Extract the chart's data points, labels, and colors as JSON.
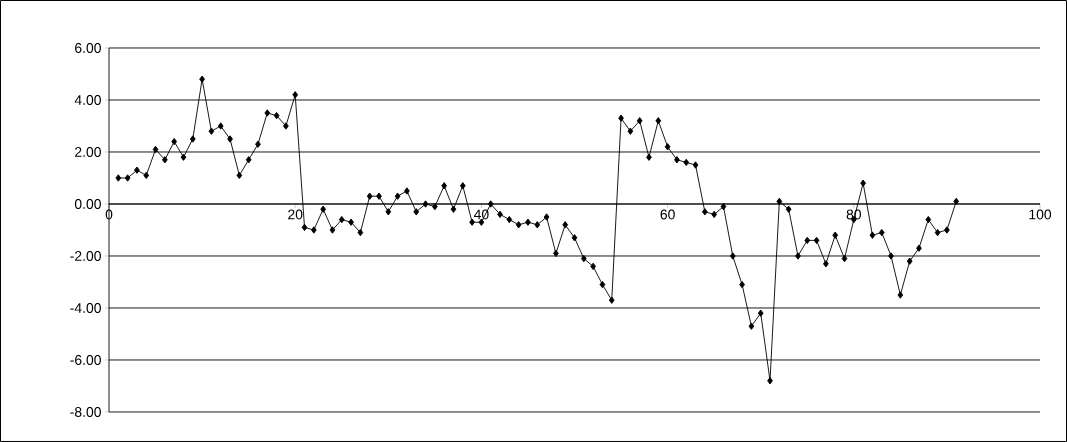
{
  "chart_data": {
    "type": "line",
    "x": [
      1,
      2,
      3,
      4,
      5,
      6,
      7,
      8,
      9,
      10,
      11,
      12,
      13,
      14,
      15,
      16,
      17,
      18,
      19,
      20,
      21,
      22,
      23,
      24,
      25,
      26,
      27,
      28,
      29,
      30,
      31,
      32,
      33,
      34,
      35,
      36,
      37,
      38,
      39,
      40,
      41,
      42,
      43,
      44,
      45,
      46,
      47,
      48,
      49,
      50,
      51,
      52,
      53,
      54,
      55,
      56,
      57,
      58,
      59,
      60,
      61,
      62,
      63,
      64,
      65,
      66,
      67,
      68,
      69,
      70,
      71,
      72,
      73,
      74,
      75,
      76,
      77,
      78,
      79,
      80,
      81,
      82,
      83,
      84,
      85,
      86,
      87,
      88,
      89,
      90,
      91
    ],
    "values": [
      1.0,
      1.0,
      1.3,
      1.1,
      2.1,
      1.7,
      2.4,
      1.8,
      2.5,
      4.8,
      2.8,
      3.0,
      2.5,
      1.1,
      1.7,
      2.3,
      3.5,
      3.4,
      3.0,
      4.2,
      -0.9,
      -1.0,
      -0.2,
      -1.0,
      -0.6,
      -0.7,
      -1.1,
      0.3,
      0.3,
      -0.3,
      0.3,
      0.5,
      -0.3,
      0.0,
      -0.1,
      0.7,
      -0.2,
      0.7,
      -0.7,
      -0.7,
      0.0,
      -0.4,
      -0.6,
      -0.8,
      -0.7,
      -0.8,
      -0.5,
      -1.9,
      -0.8,
      -1.3,
      -2.1,
      -2.4,
      -3.1,
      -3.7,
      3.3,
      2.8,
      3.2,
      1.8,
      3.2,
      2.2,
      1.7,
      1.6,
      1.5,
      -0.3,
      -0.4,
      -0.1,
      -2.0,
      -3.1,
      -4.7,
      -4.2,
      -6.8,
      0.1,
      -0.2,
      -2.0,
      -1.4,
      -1.4,
      -2.3,
      -1.2,
      -2.1,
      -0.6,
      0.8,
      -1.2,
      -1.1,
      -2.0,
      -3.5,
      -2.2,
      -1.7,
      -0.6,
      -1.1,
      -1.0,
      0.1
    ],
    "color": "#000000",
    "marker": "diamond",
    "line_style": "solid",
    "xlim": [
      0,
      100
    ],
    "xticks": [
      0,
      20,
      40,
      60,
      80,
      100
    ],
    "ylim": [
      -8,
      6
    ],
    "yticks": [
      {
        "value": -8,
        "label": "-8.00"
      },
      {
        "value": -6,
        "label": "-6.00"
      },
      {
        "value": -4,
        "label": "-4.00"
      },
      {
        "value": -2,
        "label": "-2.00"
      },
      {
        "value": 0,
        "label": "0.00"
      },
      {
        "value": 2,
        "label": "2.00"
      },
      {
        "value": 4,
        "label": "4.00"
      },
      {
        "value": 6,
        "label": "6.00"
      }
    ],
    "grid": "y"
  }
}
